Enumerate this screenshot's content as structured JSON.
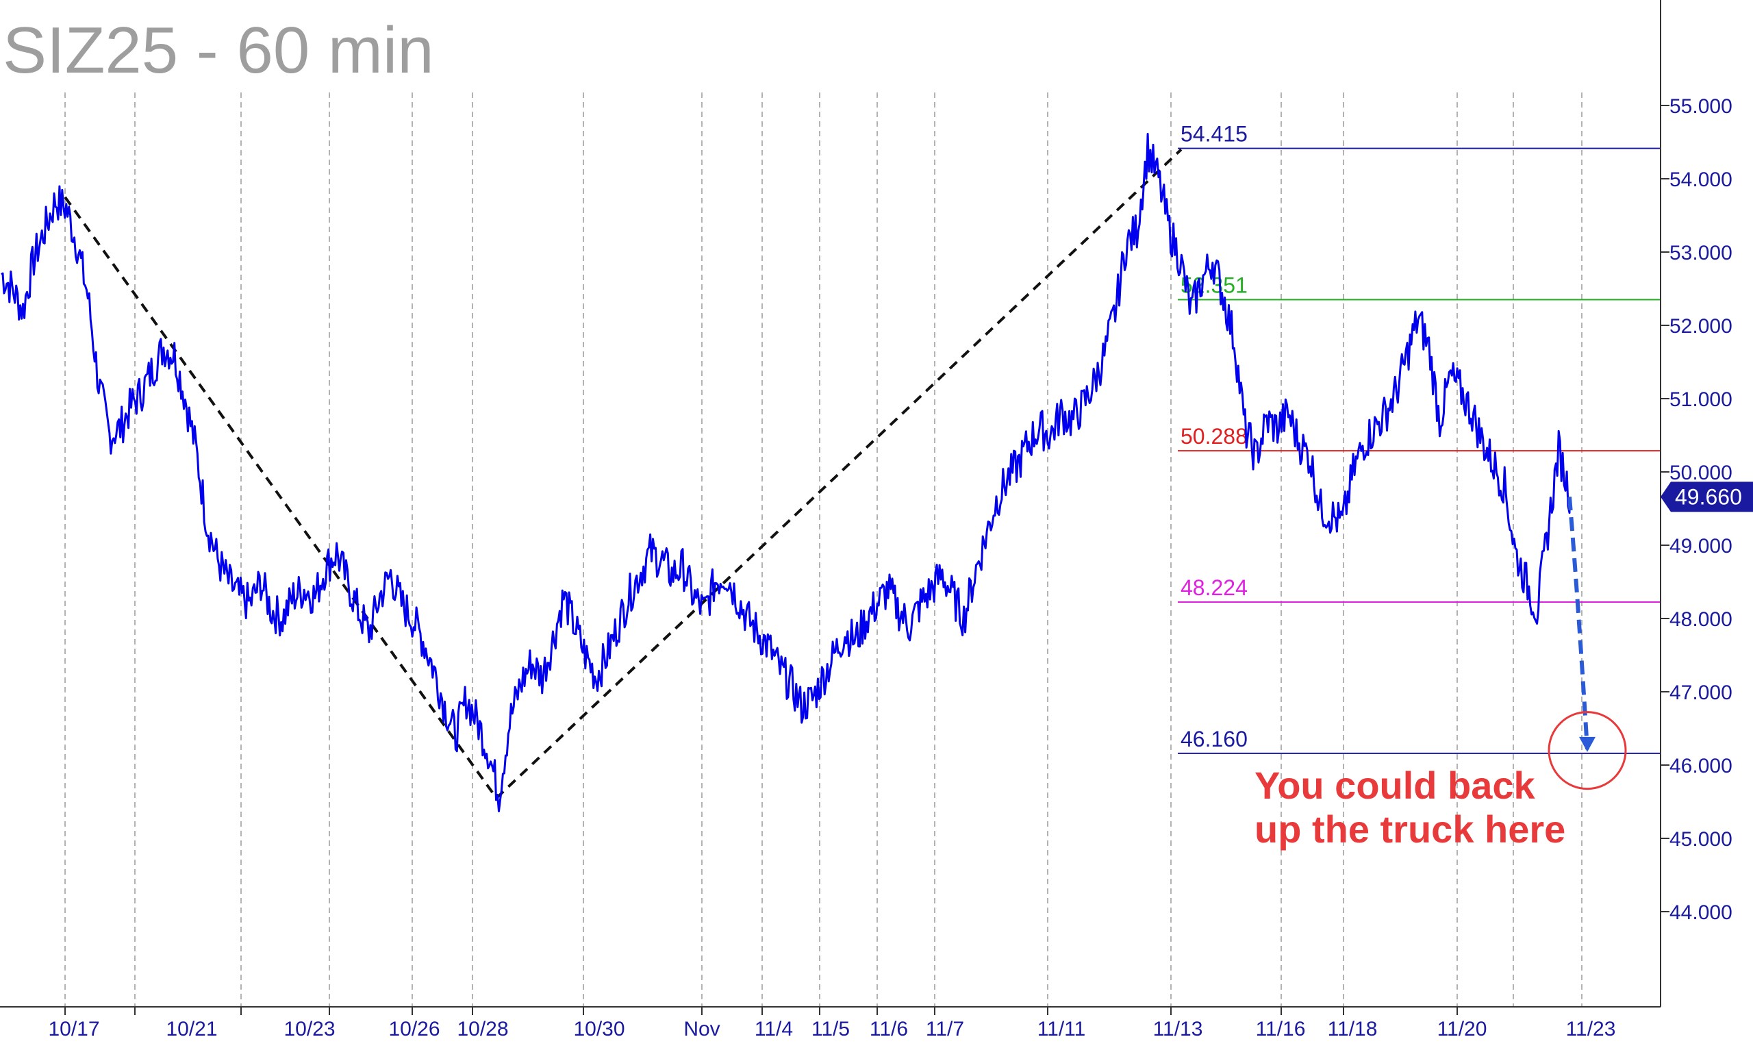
{
  "chart_data": {
    "type": "line",
    "title": "SIZ25 - 60 min",
    "series": [
      {
        "values": [
          52.7,
          52.5,
          52.2,
          52.9,
          53.3,
          53.7,
          53.6,
          53.1,
          52.4,
          51.2,
          50.5,
          50.6,
          50.9,
          51.1,
          51.4,
          51.7,
          51.6,
          51.0,
          50.3,
          49.3,
          48.8,
          48.5,
          48.3,
          48.2,
          48.5,
          48.1,
          48.0,
          48.3,
          48.4,
          48.3,
          48.7,
          48.9,
          48.5,
          48.1,
          47.8,
          48.3,
          48.6,
          48.2,
          48.0,
          47.7,
          47.3,
          46.8,
          46.4,
          46.9,
          46.6,
          46.2,
          45.6,
          46.6,
          47.1,
          47.4,
          47.2,
          47.7,
          48.3,
          47.9,
          47.5,
          47.2,
          47.5,
          47.9,
          48.3,
          48.6,
          48.9,
          48.8,
          48.6,
          48.7,
          48.3,
          48.1,
          48.5,
          48.6,
          48.3,
          48.0,
          47.8,
          47.6,
          47.3,
          47.1,
          46.8,
          46.9,
          47.2,
          47.5,
          47.8,
          47.7,
          48.0,
          48.2,
          48.4,
          48.1,
          47.9,
          48.2,
          48.4,
          48.6,
          48.3,
          48.0,
          48.6,
          49.1,
          49.6,
          49.9,
          50.1,
          50.4,
          50.6,
          50.5,
          50.8,
          50.7,
          50.9,
          51.2,
          51.6,
          52.2,
          53.1,
          53.3,
          54.4,
          54.0,
          53.3,
          52.9,
          52.2,
          52.6,
          52.9,
          52.4,
          51.8,
          50.6,
          50.2,
          50.7,
          50.6,
          50.8,
          50.4,
          50.2,
          49.5,
          49.4,
          49.3,
          50.0,
          50.4,
          50.6,
          50.8,
          51.1,
          51.6,
          52.1,
          51.7,
          50.7,
          51.3,
          51.1,
          50.8,
          50.4,
          50.1,
          49.8,
          48.9,
          48.5,
          48.1,
          49.2,
          50.3,
          49.7
        ]
      }
    ],
    "x_tick_labels": [
      "10/17",
      "10/21",
      "10/23",
      "10/26",
      "10/28",
      "10/30",
      "Nov",
      "11/4",
      "11/5",
      "11/6",
      "11/7",
      "11/11",
      "11/13",
      "11/16",
      "11/18",
      "11/20",
      "11/23"
    ],
    "y_tick_labels": [
      "55.000",
      "54.000",
      "53.000",
      "52.000",
      "51.000",
      "50.000",
      "49.000",
      "48.000",
      "47.000",
      "46.000",
      "45.000",
      "44.000"
    ],
    "ylim": [
      43.0,
      56.3
    ],
    "last_value_label": "49.660",
    "levels": [
      {
        "value": 54.415,
        "label": "54.415",
        "color": "#1a1aa0"
      },
      {
        "value": 52.351,
        "label": "52.351",
        "color": "#22b022"
      },
      {
        "value": 50.288,
        "label": "50.288",
        "color": "#e02020"
      },
      {
        "value": 48.224,
        "label": "48.224",
        "color": "#e020e0"
      },
      {
        "value": 46.16,
        "label": "46.160",
        "color": "#1a1aa0"
      }
    ],
    "annotation": {
      "line1": "You could back",
      "line2": "up the truck here"
    },
    "colors": {
      "price": "#0000ee",
      "projection": "#2a5ad8",
      "axis_text": "#1a1aa0",
      "note": "#e83a3a",
      "grid": "#9a9a9a"
    },
    "grid": "vertical dashed"
  }
}
